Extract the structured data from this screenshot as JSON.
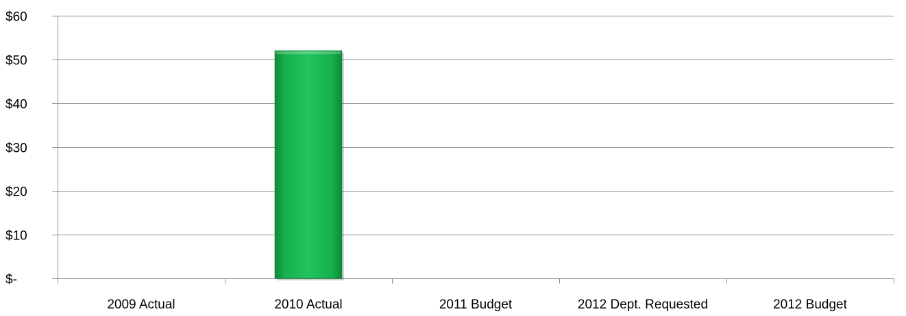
{
  "chart_data": {
    "type": "bar",
    "categories": [
      "2009 Actual",
      "2010 Actual",
      "2011 Budget",
      "2012 Dept. Requested",
      "2012 Budget"
    ],
    "values": [
      0,
      52,
      0,
      0,
      0
    ],
    "ylim": [
      0,
      60
    ],
    "yticks": [
      0,
      10,
      20,
      30,
      40,
      50,
      60
    ],
    "ytick_labels": [
      "$-",
      "$10",
      "$20",
      "$30",
      "$40",
      "$50",
      "$60"
    ],
    "title": "",
    "xlabel": "",
    "ylabel": "",
    "grid": true,
    "bar_color": "#1fb955",
    "bar_color_dark": "#0f8a3a",
    "grid_color": "#8c8c8c"
  }
}
